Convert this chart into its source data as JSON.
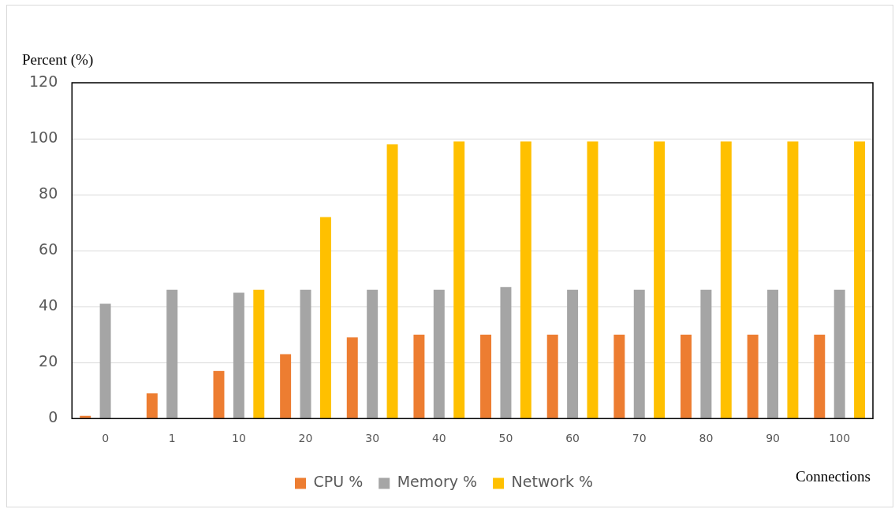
{
  "chart_data": {
    "type": "bar",
    "ylabel": "Percent (%)",
    "xlabel": "Connections",
    "categories": [
      "0",
      "1",
      "10",
      "20",
      "30",
      "40",
      "50",
      "60",
      "70",
      "80",
      "90",
      "100"
    ],
    "series": [
      {
        "name": "CPU %",
        "color": "#ed7d31",
        "values": [
          1,
          9,
          17,
          23,
          29,
          30,
          30,
          30,
          30,
          30,
          30,
          30
        ]
      },
      {
        "name": "Memory %",
        "color": "#a5a5a5",
        "values": [
          41,
          46,
          45,
          46,
          46,
          46,
          47,
          46,
          46,
          46,
          46,
          46
        ]
      },
      {
        "name": "Network %",
        "color": "#ffc000",
        "values": [
          0,
          0,
          46,
          72,
          98,
          99,
          99,
          99,
          99,
          99,
          99,
          99
        ]
      }
    ],
    "ylim": [
      0,
      120
    ],
    "yticks": [
      0,
      20,
      40,
      60,
      80,
      100,
      120
    ],
    "grid": "y",
    "legend": "bottom"
  }
}
